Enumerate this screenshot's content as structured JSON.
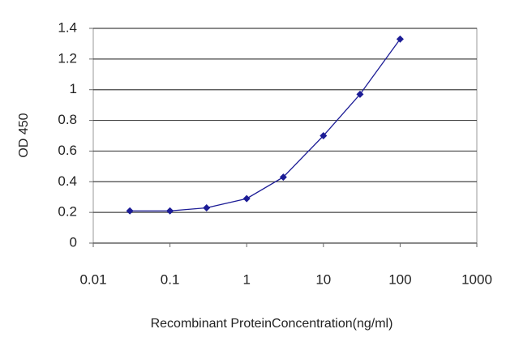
{
  "chart_data": {
    "type": "line",
    "xlabel": "Recombinant ProteinConcentration(ng/ml)",
    "ylabel": "OD 450",
    "x": [
      0.03,
      0.1,
      0.3,
      1,
      3,
      10,
      30,
      100
    ],
    "values": [
      0.21,
      0.21,
      0.23,
      0.29,
      0.43,
      0.7,
      0.97,
      1.33
    ],
    "color": "#1c1c96",
    "xscale": "log",
    "xlim": [
      0.01,
      1000
    ],
    "xticks": [
      0.01,
      0.1,
      1,
      10,
      100,
      1000
    ],
    "ylim": [
      0,
      1.4
    ],
    "yticks": [
      0,
      0.2,
      0.4,
      0.6,
      0.8,
      1,
      1.2,
      1.4
    ],
    "grid": true
  }
}
